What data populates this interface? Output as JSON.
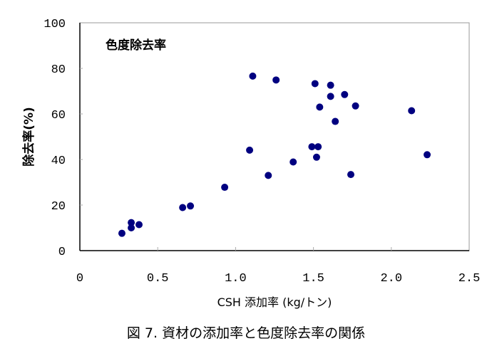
{
  "chart_data": {
    "type": "scatter",
    "title": "色度除去率",
    "xlabel": "CSH 添加率 (kg/トン)",
    "ylabel": "除去率(%)",
    "caption": "図 7.  資材の添加率と色度除去率の関係",
    "xlim": [
      0,
      2.5
    ],
    "ylim": [
      0,
      100
    ],
    "xticks": [
      "0",
      "0.5",
      "1.0",
      "1.5",
      "2.0",
      "2.5"
    ],
    "xtick_values": [
      0,
      0.5,
      1.0,
      1.5,
      2.0,
      2.5
    ],
    "yticks": [
      "0",
      "20",
      "40",
      "60",
      "80",
      "100"
    ],
    "ytick_values": [
      0,
      20,
      40,
      60,
      80,
      100
    ],
    "grid": false,
    "marker_color": "#000080",
    "points": [
      [
        0.27,
        7.6
      ],
      [
        0.33,
        10.0
      ],
      [
        0.33,
        12.3
      ],
      [
        0.38,
        11.4
      ],
      [
        0.66,
        18.9
      ],
      [
        0.71,
        19.6
      ],
      [
        0.93,
        27.8
      ],
      [
        1.09,
        44.1
      ],
      [
        1.11,
        76.6
      ],
      [
        1.21,
        33.0
      ],
      [
        1.26,
        74.9
      ],
      [
        1.37,
        38.9
      ],
      [
        1.49,
        45.6
      ],
      [
        1.53,
        45.6
      ],
      [
        1.52,
        41.0
      ],
      [
        1.51,
        73.3
      ],
      [
        1.54,
        63.0
      ],
      [
        1.61,
        72.6
      ],
      [
        1.61,
        67.7
      ],
      [
        1.64,
        56.7
      ],
      [
        1.7,
        68.5
      ],
      [
        1.74,
        33.4
      ],
      [
        1.77,
        63.5
      ],
      [
        2.13,
        61.4
      ],
      [
        2.23,
        42.1
      ]
    ]
  }
}
